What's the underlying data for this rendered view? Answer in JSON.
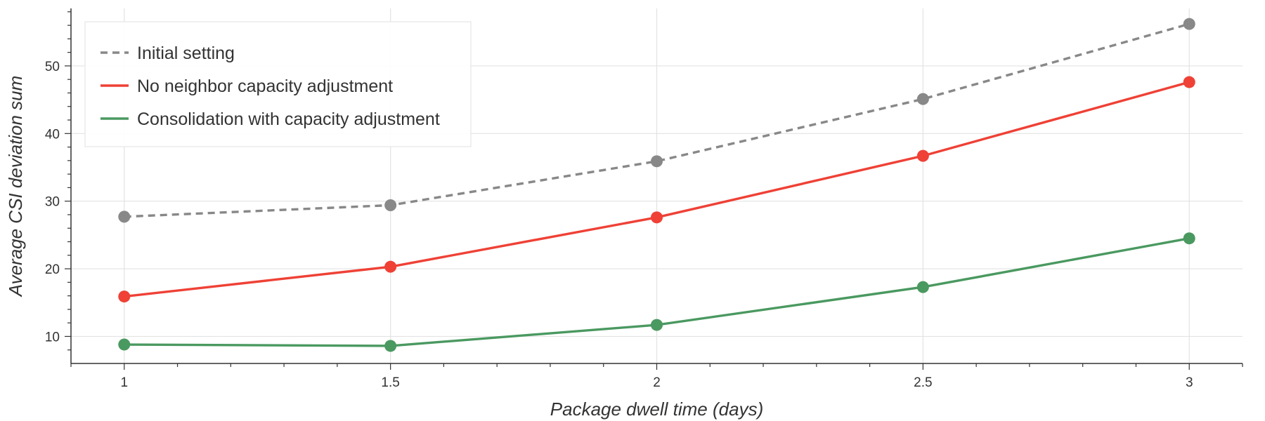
{
  "chart_data": {
    "type": "line",
    "title": "",
    "xlabel": "Package dwell time (days)",
    "ylabel": "Average CSI deviation sum",
    "x": [
      1,
      1.5,
      2,
      2.5,
      3
    ],
    "xlim": [
      0.9,
      3.1
    ],
    "ylim": [
      6,
      58.5
    ],
    "x_ticks": [
      1,
      1.5,
      2,
      2.5,
      3
    ],
    "x_tick_labels": [
      "1",
      "1.5",
      "2",
      "2.5",
      "3"
    ],
    "y_ticks": [
      10,
      20,
      30,
      40,
      50
    ],
    "y_tick_labels": [
      "10",
      "20",
      "30",
      "40",
      "50"
    ],
    "grid": true,
    "legend_position": "top-left",
    "series": [
      {
        "name": "Initial setting",
        "values": [
          27.7,
          29.4,
          35.9,
          45.1,
          56.2
        ],
        "color": "#888888",
        "dash": "dashed"
      },
      {
        "name": "No neighbor capacity adjustment",
        "values": [
          15.9,
          20.3,
          27.6,
          36.7,
          47.6
        ],
        "color": "#ef4136",
        "dash": "solid"
      },
      {
        "name": "Consolidation with capacity adjustment",
        "values": [
          8.8,
          8.6,
          11.7,
          17.3,
          24.5
        ],
        "color": "#4a9960",
        "dash": "solid"
      }
    ]
  }
}
